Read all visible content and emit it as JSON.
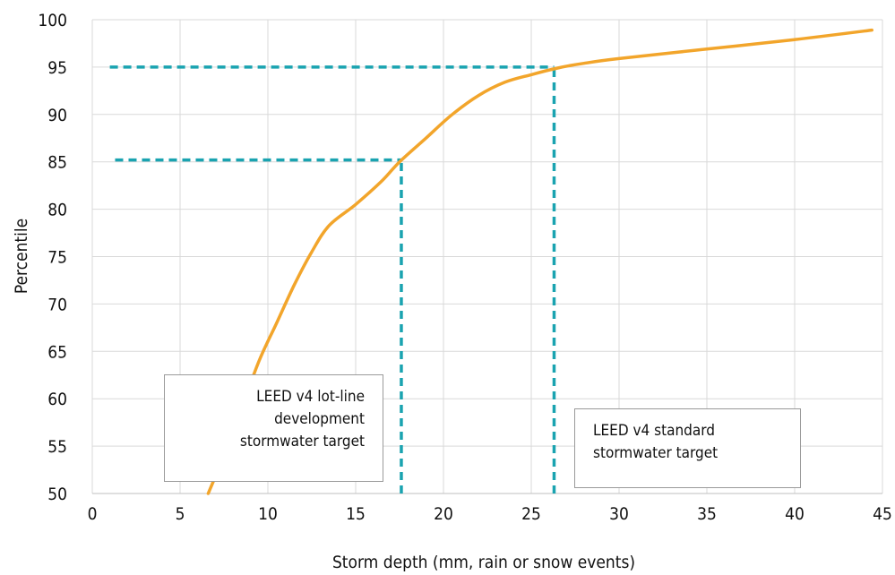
{
  "chart_data": {
    "type": "line",
    "title": "",
    "xlabel": "Storm depth (mm, rain or snow events)",
    "ylabel": "Percentile",
    "xlim": [
      0,
      45
    ],
    "ylim": [
      50,
      100
    ],
    "x_ticks": [
      "0",
      "5",
      "10",
      "15",
      "20",
      "25",
      "30",
      "35",
      "40",
      "45"
    ],
    "y_ticks": [
      "50",
      "55",
      "60",
      "65",
      "70",
      "75",
      "80",
      "85",
      "90",
      "95",
      "100"
    ],
    "grid": true,
    "series": [
      {
        "color": "#f2a52b",
        "points": [
          [
            6.6,
            50
          ],
          [
            7.5,
            54
          ],
          [
            8.5,
            59
          ],
          [
            9.5,
            64
          ],
          [
            10.5,
            68
          ],
          [
            11.5,
            72
          ],
          [
            12.5,
            75.5
          ],
          [
            13.5,
            78.3
          ],
          [
            15,
            80.5
          ],
          [
            16.5,
            83
          ],
          [
            17.5,
            85
          ],
          [
            19,
            87.5
          ],
          [
            20.5,
            90
          ],
          [
            22,
            92
          ],
          [
            23.5,
            93.4
          ],
          [
            25,
            94.2
          ],
          [
            26.5,
            94.9
          ],
          [
            28,
            95.4
          ],
          [
            30,
            95.9
          ],
          [
            35,
            96.9
          ],
          [
            40,
            97.9
          ],
          [
            44.4,
            98.9
          ]
        ]
      }
    ],
    "reference_lines": [
      {
        "kind": "horizontal",
        "y": 95,
        "x_from": 1.0,
        "x_to": 26.3,
        "color": "#1aa3b0"
      },
      {
        "kind": "vertical",
        "x": 26.3,
        "y_from": 50,
        "y_to": 95,
        "color": "#1aa3b0"
      },
      {
        "kind": "horizontal",
        "y": 85.2,
        "x_from": 1.3,
        "x_to": 17.6,
        "color": "#1aa3b0"
      },
      {
        "kind": "vertical",
        "x": 17.6,
        "y_from": 50,
        "y_to": 85.2,
        "color": "#1aa3b0"
      }
    ],
    "annotations": {
      "lot_line": [
        "LEED v4 lot-line",
        "development",
        "stormwater target"
      ],
      "standard": [
        "LEED v4 standard",
        "stormwater target"
      ]
    }
  }
}
